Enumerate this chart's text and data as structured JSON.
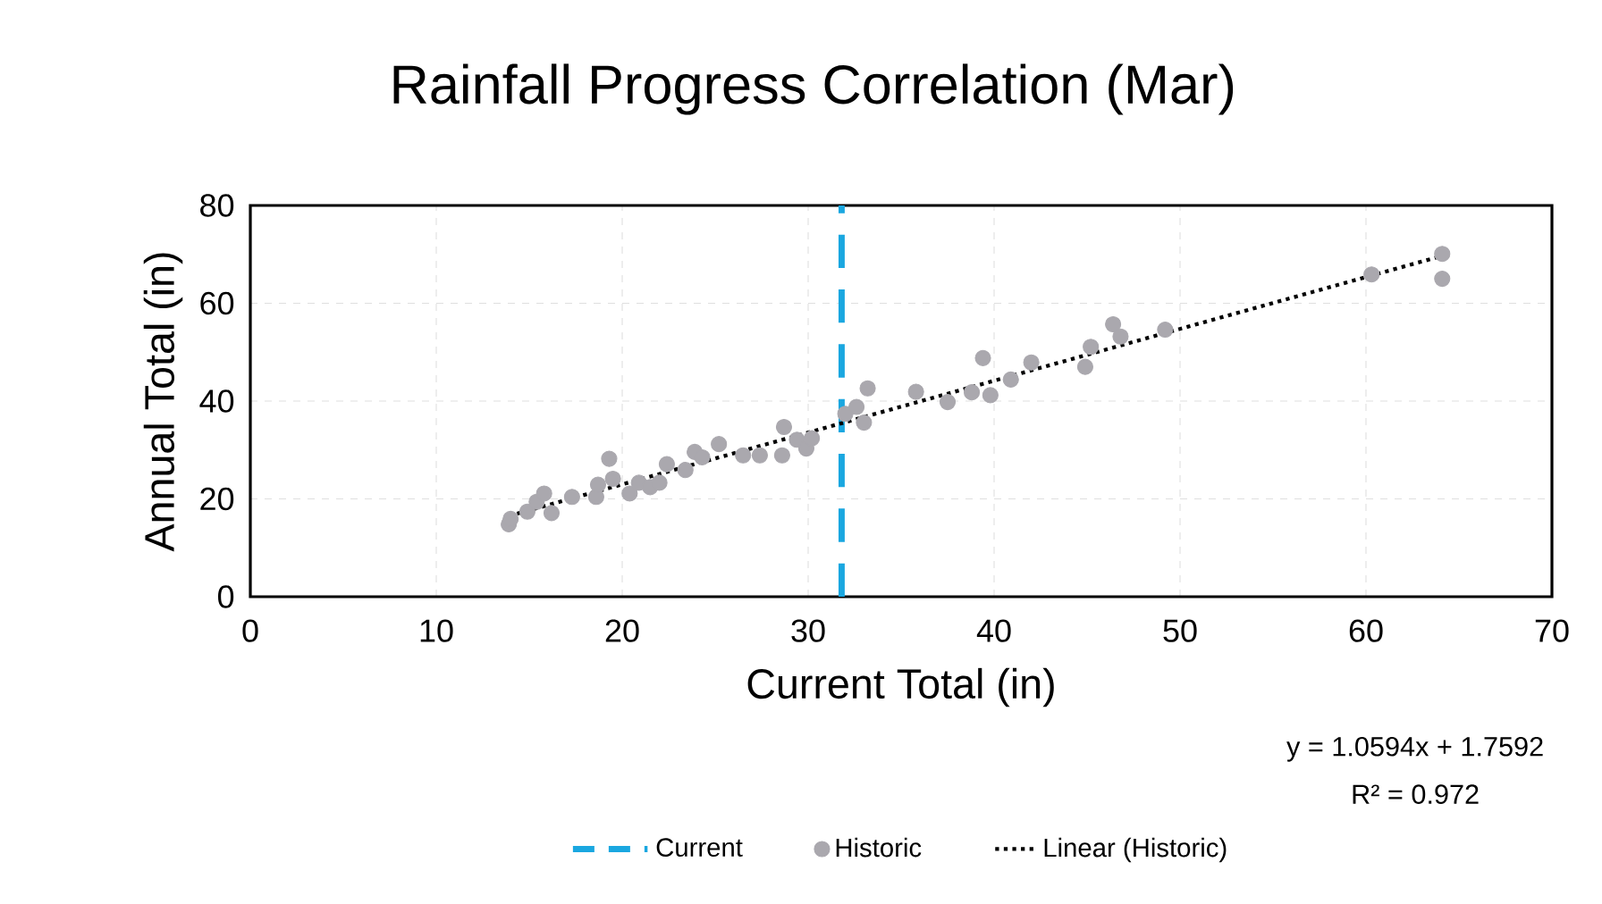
{
  "chart_data": {
    "type": "scatter",
    "title": "Rainfall Progress Correlation (Mar)",
    "xlabel": "Current Total (in)",
    "ylabel": "Annual Total (in)",
    "xlim": [
      0,
      70
    ],
    "xticks": [
      0,
      10,
      20,
      30,
      40,
      50,
      60,
      70
    ],
    "ylim": [
      0,
      80
    ],
    "yticks": [
      0,
      20,
      40,
      60,
      80
    ],
    "grid": true,
    "legend": "bottom",
    "series": [
      {
        "name": "Historic",
        "marker": "circle",
        "color": "#aaa8ae",
        "x": [
          13.9,
          14.0,
          14.9,
          15.4,
          15.8,
          16.2,
          17.3,
          18.6,
          18.7,
          19.3,
          19.5,
          20.4,
          20.9,
          21.5,
          22.0,
          22.4,
          23.4,
          23.9,
          24.3,
          25.2,
          26.5,
          27.4,
          28.6,
          28.7,
          29.4,
          29.9,
          30.2,
          32.0,
          32.6,
          33.0,
          33.2,
          35.8,
          37.5,
          38.8,
          39.4,
          39.8,
          40.9,
          42.0,
          44.9,
          45.2,
          46.4,
          46.8,
          49.2,
          60.3,
          64.1,
          64.1
        ],
        "values": [
          14.8,
          15.9,
          17.4,
          19.4,
          21.1,
          17.1,
          20.4,
          20.4,
          22.9,
          28.2,
          24.1,
          21.1,
          23.3,
          22.4,
          23.3,
          27.1,
          25.9,
          29.6,
          28.5,
          31.2,
          28.9,
          28.9,
          28.9,
          34.7,
          32.1,
          30.3,
          32.4,
          37.4,
          38.8,
          35.6,
          42.6,
          41.9,
          39.8,
          41.8,
          48.8,
          41.2,
          44.4,
          47.9,
          47.0,
          51.1,
          55.7,
          53.2,
          54.6,
          65.9,
          70.1,
          65.0
        ]
      },
      {
        "name": "Linear (Historic)",
        "type": "line",
        "line_style": "dotted",
        "marker": "none",
        "color": "#000000",
        "x": [
          13.9,
          64.1
        ],
        "values": [
          16.5,
          69.7
        ]
      }
    ],
    "ref_lines": [
      {
        "axis": "x",
        "value": 31.8,
        "label": "Current",
        "color": "#1aa7e0",
        "line_style": "dashed"
      }
    ],
    "annotations": [
      "y = 1.0594x + 1.7592",
      "R² = 0.972"
    ]
  }
}
